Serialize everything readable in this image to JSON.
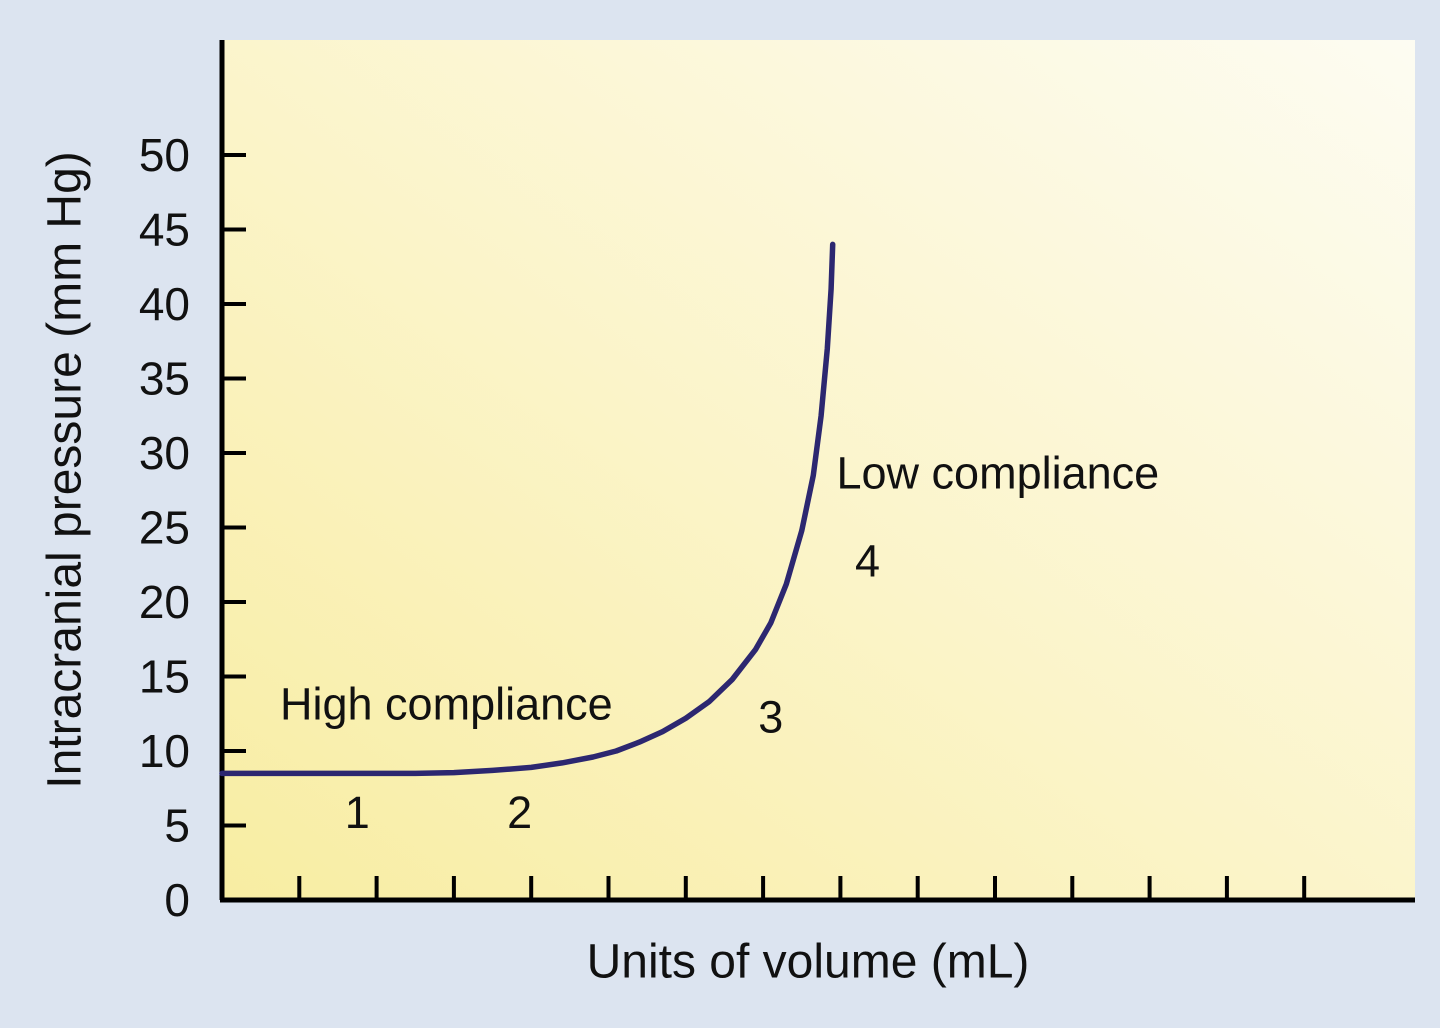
{
  "chart_data": {
    "type": "line",
    "title": "",
    "xlabel": "Units of volume (mL)",
    "ylabel": "Intracranial pressure (mm Hg)",
    "ylim": [
      0,
      50
    ],
    "y_ticks": [
      0,
      5,
      10,
      15,
      20,
      25,
      30,
      35,
      40,
      45,
      50
    ],
    "x_axis": {
      "tick_count": 14,
      "tick_labels_shown": false,
      "unit": "mL"
    },
    "grid": false,
    "legend": false,
    "series": [
      {
        "name": "intracranial pressure-volume compliance curve",
        "color": "#2c2770",
        "points": [
          [
            0,
            8.5
          ],
          [
            0.5,
            8.5
          ],
          [
            1,
            8.5
          ],
          [
            1.5,
            8.5
          ],
          [
            2,
            8.5
          ],
          [
            2.5,
            8.5
          ],
          [
            3,
            8.55
          ],
          [
            3.5,
            8.7
          ],
          [
            4,
            8.9
          ],
          [
            4.4,
            9.2
          ],
          [
            4.8,
            9.6
          ],
          [
            5.1,
            10.0
          ],
          [
            5.4,
            10.6
          ],
          [
            5.7,
            11.3
          ],
          [
            6.0,
            12.2
          ],
          [
            6.3,
            13.3
          ],
          [
            6.6,
            14.8
          ],
          [
            6.9,
            16.8
          ],
          [
            7.1,
            18.6
          ],
          [
            7.3,
            21.2
          ],
          [
            7.5,
            24.8
          ],
          [
            7.65,
            28.5
          ],
          [
            7.75,
            32.5
          ],
          [
            7.83,
            37.0
          ],
          [
            7.88,
            41.0
          ],
          [
            7.9,
            44.0
          ]
        ]
      }
    ],
    "annotations": [
      {
        "text": "High compliance",
        "x": 0.75,
        "y": 13.2,
        "anchor": "start"
      },
      {
        "text": "Low compliance",
        "x": 7.95,
        "y": 28.7,
        "anchor": "start"
      },
      {
        "text": "1",
        "x": 1.75,
        "y": 5.9,
        "anchor": "middle"
      },
      {
        "text": "2",
        "x": 3.85,
        "y": 5.9,
        "anchor": "middle"
      },
      {
        "text": "3",
        "x": 7.1,
        "y": 12.3,
        "anchor": "middle"
      },
      {
        "text": "4",
        "x": 8.35,
        "y": 22.8,
        "anchor": "middle"
      }
    ],
    "colors": {
      "curve": "#2c2770",
      "axis": "#000000",
      "plot_bg_start": "#f8eda2",
      "plot_bg_end": "#fdfcf2",
      "page_bg": "#dce4f0",
      "text": "#111111"
    }
  }
}
